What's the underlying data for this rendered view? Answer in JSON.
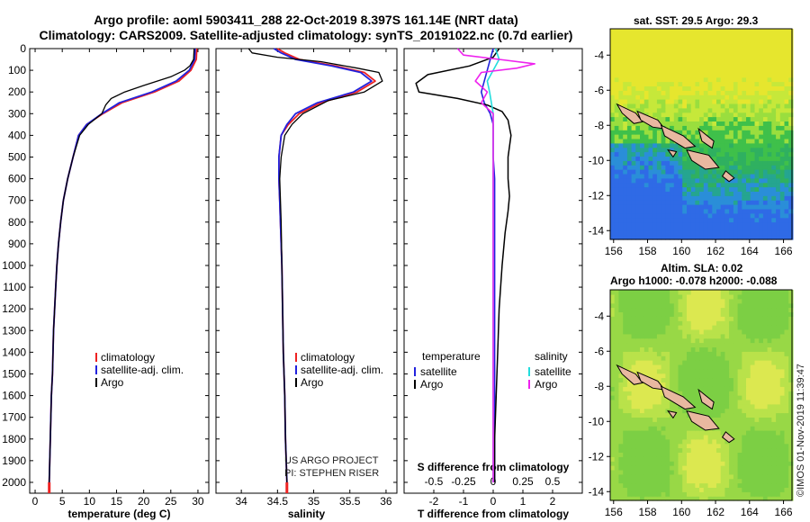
{
  "header": {
    "line1": "Argo profile: aoml 5903411_288 22-Oct-2019 8.397S 161.14E (NRT data)",
    "line2": "Climatology: CARS2009. Satellite-adjusted climatology: synTS_20191022.nc (0.7d earlier)"
  },
  "credit": {
    "line1": "US ARGO PROJECT",
    "line2": "PI: STEPHEN RISER"
  },
  "timestamp": "©IMOS 01-Nov-2019 11:39:47",
  "maps": {
    "sst_title": "sat. SST: 29.5 Argo: 29.3",
    "sla_title_1": "Altim. SLA: 0.02",
    "sla_title_2": "Argo h1000: -0.078 h2000: -0.088",
    "lat_ticks": [
      "-4",
      "-6",
      "-8",
      "-10",
      "-12",
      "-14"
    ],
    "lon_ticks": [
      "156",
      "158",
      "160",
      "162",
      "164",
      "166"
    ],
    "lat_range": [
      -14.5,
      -2.5
    ],
    "lon_range": [
      155.8,
      166.5
    ]
  },
  "colors": {
    "climatology": "#ee2222",
    "satellite": "#2222dd",
    "argo": "#000000",
    "sat_salinity": "#22dddd",
    "argo_salinity": "#ee22ee"
  },
  "chart_data": [
    {
      "type": "line",
      "xlabel": "temperature (deg C)",
      "ylabel": "",
      "xlim": [
        -1,
        32
      ],
      "ylim": [
        2050,
        0
      ],
      "xticks": [
        "0",
        "5",
        "10",
        "15",
        "20",
        "25",
        "30"
      ],
      "yticks": [
        "0",
        "100",
        "200",
        "300",
        "400",
        "500",
        "600",
        "700",
        "800",
        "900",
        "1000",
        "1100",
        "1200",
        "1300",
        "1400",
        "1500",
        "1600",
        "1700",
        "1800",
        "1900",
        "2000"
      ],
      "legend": [
        "climatology",
        "satellite-adj. clim.",
        "Argo"
      ],
      "series": [
        {
          "name": "climatology",
          "points": [
            [
              29.8,
              0
            ],
            [
              29.7,
              50
            ],
            [
              28.7,
              100
            ],
            [
              26.5,
              150
            ],
            [
              22,
              200
            ],
            [
              16,
              250
            ],
            [
              12.5,
              300
            ],
            [
              9.5,
              350
            ],
            [
              8,
              400
            ],
            [
              7,
              500
            ],
            [
              6,
              600
            ],
            [
              5.2,
              700
            ],
            [
              4.7,
              800
            ],
            [
              4.3,
              900
            ],
            [
              4,
              1000
            ],
            [
              3.8,
              1100
            ],
            [
              3.6,
              1200
            ],
            [
              3.4,
              1300
            ],
            [
              3.3,
              1400
            ],
            [
              3.2,
              1500
            ],
            [
              3,
              1600
            ],
            [
              2.9,
              1700
            ],
            [
              2.8,
              1800
            ],
            [
              2.7,
              1900
            ],
            [
              2.6,
              2000
            ]
          ]
        },
        {
          "name": "satellite-adj. clim.",
          "points": [
            [
              29.5,
              0
            ],
            [
              29.4,
              50
            ],
            [
              28.4,
              100
            ],
            [
              26,
              150
            ],
            [
              21.5,
              200
            ],
            [
              15.5,
              250
            ],
            [
              12.3,
              300
            ],
            [
              9.5,
              350
            ],
            [
              8,
              400
            ],
            [
              7,
              500
            ],
            [
              6,
              600
            ],
            [
              5.2,
              700
            ],
            [
              4.7,
              800
            ],
            [
              4.3,
              900
            ],
            [
              4,
              1000
            ],
            [
              3.8,
              1100
            ],
            [
              3.6,
              1200
            ],
            [
              3.4,
              1300
            ],
            [
              3.3,
              1400
            ],
            [
              3.2,
              1500
            ],
            [
              3,
              1600
            ],
            [
              2.9,
              1700
            ],
            [
              2.8,
              1800
            ],
            [
              2.7,
              1900
            ],
            [
              2.6,
              2000
            ]
          ]
        },
        {
          "name": "Argo",
          "points": [
            [
              29.3,
              0
            ],
            [
              29.2,
              50
            ],
            [
              28.5,
              80
            ],
            [
              27.5,
              100
            ],
            [
              25,
              130
            ],
            [
              20,
              170
            ],
            [
              16.5,
              200
            ],
            [
              14,
              230
            ],
            [
              13,
              260
            ],
            [
              12.3,
              300
            ],
            [
              9.8,
              350
            ],
            [
              8.2,
              400
            ],
            [
              7,
              500
            ],
            [
              6,
              600
            ],
            [
              5.2,
              700
            ],
            [
              4.7,
              800
            ],
            [
              4.3,
              900
            ],
            [
              4,
              1000
            ],
            [
              3.8,
              1100
            ],
            [
              3.6,
              1200
            ],
            [
              3.4,
              1300
            ],
            [
              3.3,
              1400
            ],
            [
              3.2,
              1500
            ],
            [
              3,
              1600
            ],
            [
              2.9,
              1700
            ],
            [
              2.8,
              1800
            ],
            [
              2.7,
              1900
            ],
            [
              2.6,
              2000
            ]
          ]
        }
      ]
    },
    {
      "type": "line",
      "xlabel": "salinity",
      "ylabel": "",
      "xlim": [
        33.65,
        36.15
      ],
      "ylim": [
        2050,
        0
      ],
      "xticks": [
        "34",
        "34.5",
        "35",
        "35.5",
        "36"
      ],
      "legend": [
        "climatology",
        "satellite-adj. clim.",
        "Argo"
      ],
      "series": [
        {
          "name": "climatology",
          "points": [
            [
              34.5,
              0
            ],
            [
              34.6,
              20
            ],
            [
              34.8,
              50
            ],
            [
              35.3,
              80
            ],
            [
              35.7,
              110
            ],
            [
              35.85,
              150
            ],
            [
              35.6,
              200
            ],
            [
              35.1,
              250
            ],
            [
              34.8,
              300
            ],
            [
              34.65,
              350
            ],
            [
              34.55,
              400
            ],
            [
              34.52,
              500
            ],
            [
              34.52,
              600
            ],
            [
              34.53,
              700
            ],
            [
              34.54,
              800
            ],
            [
              34.55,
              900
            ],
            [
              34.56,
              1000
            ],
            [
              34.57,
              1200
            ],
            [
              34.58,
              1400
            ],
            [
              34.6,
              1600
            ],
            [
              34.61,
              1800
            ],
            [
              34.63,
              2000
            ]
          ]
        },
        {
          "name": "satellite-adj. clim.",
          "points": [
            [
              34.45,
              0
            ],
            [
              34.55,
              20
            ],
            [
              34.75,
              50
            ],
            [
              35.25,
              80
            ],
            [
              35.65,
              110
            ],
            [
              35.8,
              150
            ],
            [
              35.55,
              200
            ],
            [
              35.05,
              250
            ],
            [
              34.75,
              300
            ],
            [
              34.63,
              350
            ],
            [
              34.55,
              400
            ],
            [
              34.52,
              500
            ],
            [
              34.52,
              600
            ],
            [
              34.53,
              700
            ],
            [
              34.54,
              800
            ],
            [
              34.55,
              900
            ],
            [
              34.56,
              1000
            ],
            [
              34.57,
              1200
            ],
            [
              34.58,
              1400
            ],
            [
              34.6,
              1600
            ],
            [
              34.61,
              1800
            ],
            [
              34.63,
              2000
            ]
          ]
        },
        {
          "name": "Argo",
          "points": [
            [
              34.1,
              0
            ],
            [
              34.15,
              20
            ],
            [
              34.5,
              40
            ],
            [
              35.1,
              60
            ],
            [
              35.6,
              90
            ],
            [
              35.9,
              110
            ],
            [
              35.95,
              150
            ],
            [
              35.7,
              200
            ],
            [
              35.2,
              240
            ],
            [
              34.85,
              300
            ],
            [
              34.7,
              350
            ],
            [
              34.6,
              400
            ],
            [
              34.55,
              500
            ],
            [
              34.53,
              600
            ],
            [
              34.54,
              700
            ],
            [
              34.55,
              800
            ],
            [
              34.56,
              1000
            ],
            [
              34.57,
              1200
            ],
            [
              34.58,
              1400
            ],
            [
              34.6,
              1600
            ],
            [
              34.61,
              1800
            ],
            [
              34.63,
              2000
            ]
          ]
        }
      ]
    },
    {
      "type": "line",
      "xlabel": "T difference from climatology",
      "title": "S difference from climatology",
      "xlim": [
        -3,
        3
      ],
      "s_xlim": [
        -0.75,
        0.75
      ],
      "ylim": [
        2050,
        0
      ],
      "xticks": [
        "-2",
        "-1",
        "0",
        "1",
        "2"
      ],
      "s_xticks": [
        "-0.5",
        "-0.25",
        "0",
        "0.25",
        "0.5"
      ],
      "legend_temperature_title": "temperature",
      "legend_salinity_title": "salinity",
      "legend_temperature": [
        "satellite",
        "Argo"
      ],
      "legend_salinity": [
        "satellite",
        "Argo"
      ],
      "series": [
        {
          "name": "temperature satellite",
          "points": [
            [
              0,
              0
            ],
            [
              -0.1,
              50
            ],
            [
              -0.2,
              100
            ],
            [
              -0.3,
              150
            ],
            [
              -0.4,
              200
            ],
            [
              -0.3,
              250
            ],
            [
              -0.1,
              300
            ],
            [
              0,
              350
            ],
            [
              0,
              400
            ],
            [
              0,
              500
            ],
            [
              0.05,
              600
            ],
            [
              0.05,
              800
            ],
            [
              0.05,
              1000
            ],
            [
              0.05,
              1200
            ],
            [
              0.05,
              1400
            ],
            [
              0.05,
              1600
            ],
            [
              0.05,
              1800
            ],
            [
              0.05,
              2000
            ]
          ]
        },
        {
          "name": "temperature Argo",
          "points": [
            [
              0.2,
              0
            ],
            [
              0,
              40
            ],
            [
              -0.8,
              80
            ],
            [
              -2.2,
              120
            ],
            [
              -2.6,
              160
            ],
            [
              -2.5,
              200
            ],
            [
              -1.2,
              230
            ],
            [
              -0.2,
              260
            ],
            [
              0.3,
              290
            ],
            [
              0.5,
              330
            ],
            [
              0.6,
              400
            ],
            [
              0.5,
              500
            ],
            [
              0.5,
              600
            ],
            [
              0.55,
              680
            ],
            [
              0.5,
              750
            ],
            [
              0.4,
              850
            ],
            [
              0.3,
              1000
            ],
            [
              0.2,
              1200
            ],
            [
              0.15,
              1400
            ],
            [
              0.1,
              1600
            ],
            [
              0.05,
              1800
            ],
            [
              0.05,
              2000
            ]
          ]
        },
        {
          "name": "salinity satellite",
          "points": [
            [
              0.02,
              0
            ],
            [
              0.05,
              50
            ],
            [
              0.0,
              100
            ],
            [
              -0.05,
              150
            ],
            [
              -0.03,
              200
            ],
            [
              0.0,
              300
            ],
            [
              0,
              400
            ],
            [
              0,
              600
            ],
            [
              0,
              800
            ],
            [
              0,
              1000
            ],
            [
              0,
              1200
            ],
            [
              0,
              1400
            ],
            [
              0,
              1600
            ],
            [
              0,
              1800
            ],
            [
              0,
              2000
            ]
          ]
        },
        {
          "name": "salinity Argo",
          "points": [
            [
              -0.3,
              0
            ],
            [
              -0.25,
              30
            ],
            [
              0.05,
              50
            ],
            [
              0.35,
              70
            ],
            [
              0.2,
              90
            ],
            [
              -0.1,
              110
            ],
            [
              -0.15,
              150
            ],
            [
              -0.05,
              200
            ],
            [
              -0.1,
              250
            ],
            [
              0,
              300
            ],
            [
              0,
              400
            ],
            [
              0,
              600
            ],
            [
              0,
              800
            ],
            [
              0,
              1000
            ],
            [
              0,
              1400
            ],
            [
              0,
              1800
            ],
            [
              0,
              2000
            ]
          ]
        }
      ]
    }
  ]
}
